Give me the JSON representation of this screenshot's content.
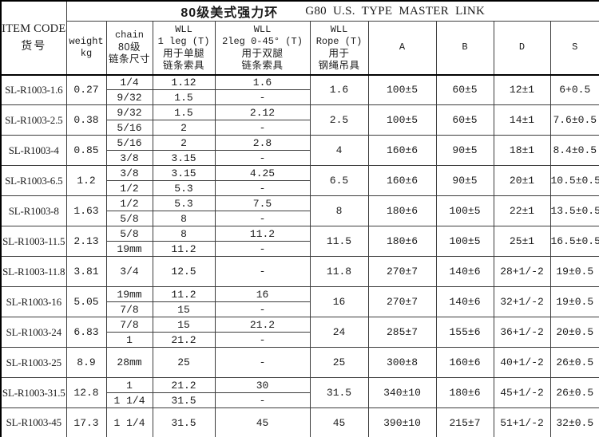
{
  "title": {
    "cn": "80级美式强力环",
    "en": "G80 U.S. TYPE MASTER LINK"
  },
  "columns": {
    "item_code": {
      "lines": [
        "ITEM CODE",
        "货号"
      ]
    },
    "weight": {
      "lines": [
        "weight",
        "kg"
      ]
    },
    "chain": {
      "lines": [
        "chain",
        "80级",
        "链条尺寸"
      ]
    },
    "wll_1leg": {
      "lines": [
        "WLL",
        "1 leg (T)",
        "用于单腿",
        "链条索具"
      ]
    },
    "wll_2leg": {
      "lines": [
        "WLL",
        "2leg 0-45° (T)",
        "用于双腿",
        "链条索具"
      ]
    },
    "wll_rope": {
      "lines": [
        "WLL",
        "Rope (T)",
        "用于",
        "钢绳吊具"
      ]
    },
    "dim_a": {
      "lines": [
        "A"
      ]
    },
    "dim_b": {
      "lines": [
        "B"
      ]
    },
    "dim_d": {
      "lines": [
        "D"
      ]
    },
    "dim_s": {
      "lines": [
        "S"
      ]
    }
  },
  "rows": [
    {
      "item_code": "SL-R1003-1.6",
      "weight": "0.27",
      "subs": [
        {
          "chain": "1/4",
          "wll_1leg": "1.12",
          "wll_2leg": "1.6"
        },
        {
          "chain": "9/32",
          "wll_1leg": "1.5",
          "wll_2leg": "-"
        }
      ],
      "wll_rope": "1.6",
      "A": "100±5",
      "B": "60±5",
      "D": "12±1",
      "S": "6+0.5"
    },
    {
      "item_code": "SL-R1003-2.5",
      "weight": "0.38",
      "subs": [
        {
          "chain": "9/32",
          "wll_1leg": "1.5",
          "wll_2leg": "2.12"
        },
        {
          "chain": "5/16",
          "wll_1leg": "2",
          "wll_2leg": "-"
        }
      ],
      "wll_rope": "2.5",
      "A": "100±5",
      "B": "60±5",
      "D": "14±1",
      "S": "7.6±0.5"
    },
    {
      "item_code": "SL-R1003-4",
      "weight": "0.85",
      "subs": [
        {
          "chain": "5/16",
          "wll_1leg": "2",
          "wll_2leg": "2.8"
        },
        {
          "chain": "3/8",
          "wll_1leg": "3.15",
          "wll_2leg": "-"
        }
      ],
      "wll_rope": "4",
      "A": "160±6",
      "B": "90±5",
      "D": "18±1",
      "S": "8.4±0.5"
    },
    {
      "item_code": "SL-R1003-6.5",
      "weight": "1.2",
      "subs": [
        {
          "chain": "3/8",
          "wll_1leg": "3.15",
          "wll_2leg": "4.25"
        },
        {
          "chain": "1/2",
          "wll_1leg": "5.3",
          "wll_2leg": "-"
        }
      ],
      "wll_rope": "6.5",
      "A": "160±6",
      "B": "90±5",
      "D": "20±1",
      "S": "10.5±0.5"
    },
    {
      "item_code": "SL-R1003-8",
      "weight": "1.63",
      "subs": [
        {
          "chain": "1/2",
          "wll_1leg": "5.3",
          "wll_2leg": "7.5"
        },
        {
          "chain": "5/8",
          "wll_1leg": "8",
          "wll_2leg": "-"
        }
      ],
      "wll_rope": "8",
      "A": "180±6",
      "B": "100±5",
      "D": "22±1",
      "S": "13.5±0.5"
    },
    {
      "item_code": "SL-R1003-11.5",
      "weight": "2.13",
      "subs": [
        {
          "chain": "5/8",
          "wll_1leg": "8",
          "wll_2leg": "11.2"
        },
        {
          "chain": "19mm",
          "wll_1leg": "11.2",
          "wll_2leg": "-"
        }
      ],
      "wll_rope": "11.5",
      "A": "180±6",
      "B": "100±5",
      "D": "25±1",
      "S": "16.5±0.5"
    },
    {
      "item_code": "SL-R1003-11.8",
      "weight": "3.81",
      "subs": [
        {
          "chain": "3/4",
          "wll_1leg": "12.5",
          "wll_2leg": "-"
        }
      ],
      "wll_rope": "11.8",
      "A": "270±7",
      "B": "140±6",
      "D": "28+1/-2",
      "S": "19±0.5"
    },
    {
      "item_code": "SL-R1003-16",
      "weight": "5.05",
      "subs": [
        {
          "chain": "19mm",
          "wll_1leg": "11.2",
          "wll_2leg": "16"
        },
        {
          "chain": "7/8",
          "wll_1leg": "15",
          "wll_2leg": "-"
        }
      ],
      "wll_rope": "16",
      "A": "270±7",
      "B": "140±6",
      "D": "32+1/-2",
      "S": "19±0.5"
    },
    {
      "item_code": "SL-R1003-24",
      "weight": "6.83",
      "subs": [
        {
          "chain": "7/8",
          "wll_1leg": "15",
          "wll_2leg": "21.2"
        },
        {
          "chain": "1",
          "wll_1leg": "21.2",
          "wll_2leg": "-"
        }
      ],
      "wll_rope": "24",
      "A": "285±7",
      "B": "155±6",
      "D": "36+1/-2",
      "S": "20±0.5"
    },
    {
      "item_code": "SL-R1003-25",
      "weight": "8.9",
      "subs": [
        {
          "chain": "28mm",
          "wll_1leg": "25",
          "wll_2leg": "-"
        }
      ],
      "wll_rope": "25",
      "A": "300±8",
      "B": "160±6",
      "D": "40+1/-2",
      "S": "26±0.5"
    },
    {
      "item_code": "SL-R1003-31.5",
      "weight": "12.8",
      "subs": [
        {
          "chain": "1",
          "wll_1leg": "21.2",
          "wll_2leg": "30"
        },
        {
          "chain": "1 1/4",
          "wll_1leg": "31.5",
          "wll_2leg": "-"
        }
      ],
      "wll_rope": "31.5",
      "A": "340±10",
      "B": "180±6",
      "D": "45+1/-2",
      "S": "26±0.5"
    },
    {
      "item_code": "SL-R1003-45",
      "weight": "17.3",
      "subs": [
        {
          "chain": "1 1/4",
          "wll_1leg": "31.5",
          "wll_2leg": "45"
        }
      ],
      "wll_rope": "45",
      "A": "390±10",
      "B": "215±7",
      "D": "51+1/-2",
      "S": "32±0.5"
    }
  ]
}
